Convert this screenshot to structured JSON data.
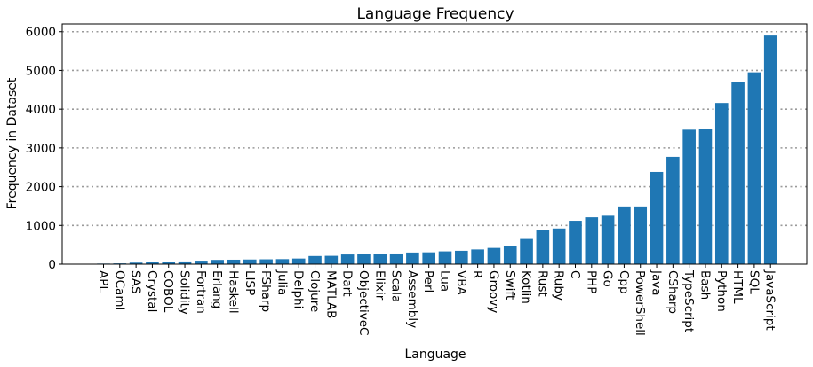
{
  "chart_data": {
    "type": "bar",
    "title": "Language Frequency",
    "xlabel": "Language",
    "ylabel": "Frequency in Dataset",
    "ylim": [
      0,
      6200
    ],
    "yticks": [
      0,
      1000,
      2000,
      3000,
      4000,
      5000,
      6000
    ],
    "grid": "y-dotted",
    "bar_color": "#1f77b4",
    "categories": [
      "APL",
      "OCaml",
      "SAS",
      "Crystal",
      "COBOL",
      "Solidity",
      "Fortran",
      "Erlang",
      "Haskell",
      "LISP",
      "FSharp",
      "Julia",
      "Delphi",
      "Clojure",
      "MATLAB",
      "Dart",
      "ObjectiveC",
      "Elixir",
      "Scala",
      "Assembly",
      "Perl",
      "Lua",
      "VBA",
      "R",
      "Groovy",
      "Swift",
      "Kotlin",
      "Rust",
      "Ruby",
      "C",
      "PHP",
      "Go",
      "Cpp",
      "PowerShell",
      "Java",
      "CSharp",
      "TypeScript",
      "Bash",
      "Python",
      "HTML",
      "SQL",
      "JavaScript"
    ],
    "values": [
      15,
      20,
      40,
      50,
      55,
      70,
      90,
      110,
      115,
      120,
      125,
      130,
      145,
      210,
      215,
      250,
      255,
      270,
      275,
      300,
      305,
      330,
      345,
      380,
      420,
      480,
      650,
      890,
      920,
      1120,
      1210,
      1250,
      1490,
      1490,
      2380,
      2770,
      3470,
      3500,
      4160,
      4700,
      4950,
      5900
    ]
  }
}
